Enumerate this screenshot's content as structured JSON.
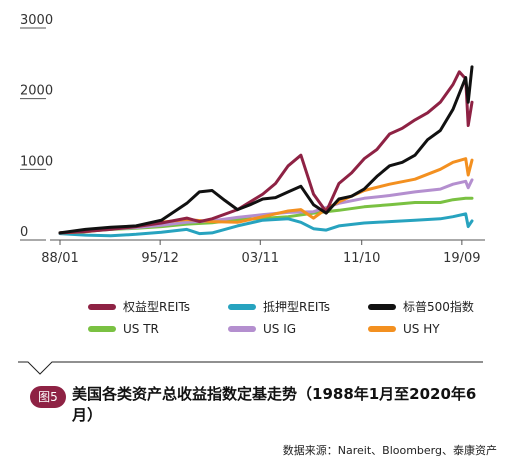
{
  "chart_data": {
    "type": "line",
    "ylim": [
      0,
      3000
    ],
    "xlim": [
      1988.0,
      2020.5
    ],
    "y_ticks": [
      {
        "value": 0,
        "label": "0"
      },
      {
        "value": 1000,
        "label": "1000"
      },
      {
        "value": 2000,
        "label": "2000"
      },
      {
        "value": 3000,
        "label": "3000"
      }
    ],
    "x_ticks": [
      {
        "value": 1988.0,
        "label": "88/01"
      },
      {
        "value": 1995.9,
        "label": "95/12"
      },
      {
        "value": 2003.8,
        "label": "03/11"
      },
      {
        "value": 2011.8,
        "label": "11/10"
      },
      {
        "value": 2019.7,
        "label": "19/09"
      }
    ],
    "grid": false,
    "legend_position": "bottom",
    "series": [
      {
        "name": "权益型REITs",
        "color": "#8e2244",
        "x": [
          1988,
          1990,
          1992,
          1994,
          1996,
          1998,
          1999,
          2000,
          2002,
          2004,
          2005,
          2006,
          2007,
          2008,
          2009,
          2010,
          2011,
          2012,
          2013,
          2014,
          2015,
          2016,
          2017,
          2018,
          2019,
          2019.5,
          2020,
          2020.2,
          2020.5
        ],
        "y": [
          100,
          120,
          150,
          190,
          240,
          310,
          260,
          300,
          430,
          650,
          800,
          1050,
          1200,
          650,
          400,
          800,
          950,
          1150,
          1280,
          1500,
          1580,
          1700,
          1800,
          1950,
          2200,
          2380,
          2280,
          1620,
          1950
        ]
      },
      {
        "name": "抵押型REITs",
        "color": "#27a3bf",
        "x": [
          1988,
          1990,
          1992,
          1994,
          1996,
          1998,
          1999,
          2000,
          2002,
          2004,
          2006,
          2007,
          2008,
          2009,
          2010,
          2012,
          2014,
          2016,
          2018,
          2019,
          2020,
          2020.2,
          2020.5
        ],
        "y": [
          90,
          70,
          60,
          80,
          110,
          150,
          90,
          100,
          200,
          280,
          300,
          250,
          160,
          140,
          200,
          240,
          260,
          280,
          300,
          330,
          370,
          190,
          270
        ]
      },
      {
        "name": "标普500指数",
        "color": "#111111",
        "x": [
          1988,
          1990,
          1992,
          1994,
          1996,
          1998,
          1999,
          2000,
          2001,
          2002,
          2003,
          2004,
          2005,
          2006,
          2007,
          2008,
          2009,
          2010,
          2011,
          2012,
          2013,
          2014,
          2015,
          2016,
          2017,
          2018,
          2019,
          2020,
          2020.2,
          2020.5
        ],
        "y": [
          100,
          150,
          180,
          200,
          280,
          520,
          680,
          700,
          560,
          430,
          500,
          580,
          600,
          680,
          760,
          500,
          380,
          580,
          620,
          720,
          900,
          1050,
          1100,
          1200,
          1420,
          1550,
          1850,
          2300,
          1950,
          2450
        ]
      },
      {
        "name": "US TR",
        "color": "#7ac142",
        "x": [
          1988,
          1990,
          1992,
          1994,
          1996,
          1998,
          2000,
          2002,
          2004,
          2006,
          2008,
          2010,
          2012,
          2014,
          2016,
          2018,
          2019,
          2020,
          2020.5
        ],
        "y": [
          100,
          125,
          150,
          165,
          190,
          225,
          245,
          290,
          305,
          330,
          380,
          420,
          470,
          500,
          530,
          530,
          570,
          590,
          590
        ]
      },
      {
        "name": "US IG",
        "color": "#b48fcf",
        "x": [
          1988,
          1990,
          1992,
          1994,
          1996,
          1998,
          2000,
          2002,
          2004,
          2006,
          2008,
          2009,
          2010,
          2012,
          2014,
          2016,
          2018,
          2019,
          2020,
          2020.2,
          2020.5
        ],
        "y": [
          100,
          125,
          155,
          175,
          210,
          250,
          270,
          320,
          360,
          390,
          400,
          460,
          520,
          590,
          630,
          680,
          720,
          790,
          830,
          740,
          850
        ]
      },
      {
        "name": "US HY",
        "color": "#f39020",
        "x": [
          1988,
          1990,
          1992,
          1994,
          1996,
          1998,
          2000,
          2002,
          2004,
          2006,
          2007,
          2008,
          2009,
          2010,
          2012,
          2014,
          2016,
          2018,
          2019,
          2020,
          2020.2,
          2020.5
        ],
        "y": [
          100,
          115,
          160,
          190,
          250,
          290,
          260,
          250,
          330,
          410,
          430,
          310,
          440,
          540,
          700,
          790,
          860,
          1000,
          1100,
          1150,
          920,
          1130
        ]
      }
    ]
  },
  "figure": {
    "badge": "图5",
    "caption": "美国各类资产总收益指数定基走势（1988年1月至2020年6月）",
    "source": "数据来源：Nareit、Bloomberg、泰康资产"
  }
}
